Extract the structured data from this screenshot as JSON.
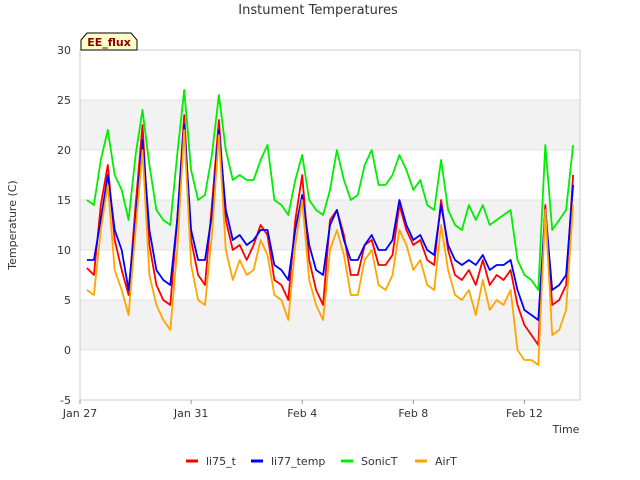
{
  "chart_data": {
    "type": "line",
    "title": "Instument Temperatures",
    "badge": "EE_flux",
    "xlabel": "Time",
    "ylabel": "Temperature (C)",
    "ylim": [
      -5,
      30
    ],
    "yticks": [
      -5,
      0,
      5,
      10,
      15,
      20,
      25,
      30
    ],
    "xlim": [
      "2023-01-27",
      "2023-02-14"
    ],
    "xticks": [
      {
        "date": "2023-01-27",
        "label": "Jan 27"
      },
      {
        "date": "2023-01-31",
        "label": "Jan 31"
      },
      {
        "date": "2023-02-04",
        "label": "Feb 4"
      },
      {
        "date": "2023-02-08",
        "label": "Feb 8"
      },
      {
        "date": "2023-02-12",
        "label": "Feb 12"
      }
    ],
    "background_bands": "alternating gray 0-5, 10-15, 20-25",
    "legend_position": "bottom",
    "series": [
      {
        "name": "li75_t",
        "color": "#ff0000",
        "x": [
          "2023-01-27T06:00",
          "2023-01-27T12:00",
          "2023-01-27T18:00",
          "2023-01-28T00:00",
          "2023-01-28T06:00",
          "2023-01-28T12:00",
          "2023-01-28T18:00",
          "2023-01-29T00:00",
          "2023-01-29T06:00",
          "2023-01-29T12:00",
          "2023-01-29T18:00",
          "2023-01-30T00:00",
          "2023-01-30T06:00",
          "2023-01-30T12:00",
          "2023-01-30T18:00",
          "2023-01-31T00:00",
          "2023-01-31T06:00",
          "2023-01-31T12:00",
          "2023-01-31T18:00",
          "2023-02-01T00:00",
          "2023-02-01T06:00",
          "2023-02-01T12:00",
          "2023-02-01T18:00",
          "2023-02-02T00:00",
          "2023-02-02T06:00",
          "2023-02-02T12:00",
          "2023-02-02T18:00",
          "2023-02-03T00:00",
          "2023-02-03T06:00",
          "2023-02-03T12:00",
          "2023-02-03T18:00",
          "2023-02-04T00:00",
          "2023-02-04T06:00",
          "2023-02-04T12:00",
          "2023-02-04T18:00",
          "2023-02-05T00:00",
          "2023-02-05T06:00",
          "2023-02-05T12:00",
          "2023-02-05T18:00",
          "2023-02-06T00:00",
          "2023-02-06T06:00",
          "2023-02-06T12:00",
          "2023-02-06T18:00",
          "2023-02-07T00:00",
          "2023-02-07T06:00",
          "2023-02-07T12:00",
          "2023-02-07T18:00",
          "2023-02-08T00:00",
          "2023-02-08T06:00",
          "2023-02-08T12:00",
          "2023-02-08T18:00",
          "2023-02-09T00:00",
          "2023-02-09T06:00",
          "2023-02-09T12:00",
          "2023-02-09T18:00",
          "2023-02-10T00:00",
          "2023-02-10T06:00",
          "2023-02-10T12:00",
          "2023-02-10T18:00",
          "2023-02-11T00:00",
          "2023-02-11T06:00",
          "2023-02-11T12:00",
          "2023-02-11T18:00",
          "2023-02-12T00:00",
          "2023-02-12T06:00",
          "2023-02-12T12:00",
          "2023-02-12T18:00",
          "2023-02-13T00:00",
          "2023-02-13T06:00",
          "2023-02-13T12:00",
          "2023-02-13T18:00"
        ],
        "values": [
          8.2,
          7.5,
          14.5,
          18.5,
          11.0,
          8.0,
          5.5,
          14.5,
          22.5,
          10.5,
          6.5,
          5.0,
          4.5,
          13.0,
          23.5,
          11.0,
          7.5,
          6.5,
          14.5,
          23.0,
          13.0,
          10.0,
          10.5,
          9.0,
          10.5,
          12.5,
          11.5,
          7.0,
          6.5,
          5.0,
          13.0,
          17.5,
          9.0,
          6.0,
          4.5,
          13.0,
          14.0,
          11.5,
          7.5,
          7.5,
          10.5,
          11.0,
          8.5,
          8.5,
          9.5,
          14.5,
          12.0,
          10.5,
          11.0,
          9.0,
          8.5,
          15.0,
          10.0,
          7.5,
          7.0,
          8.0,
          6.5,
          9.0,
          6.5,
          7.5,
          7.0,
          8.0,
          4.5,
          2.5,
          1.5,
          0.5,
          14.5,
          4.5,
          5.0,
          6.5,
          17.5
        ]
      },
      {
        "name": "li77_temp",
        "color": "#0000ff",
        "x": [
          "2023-01-27T06:00",
          "2023-01-27T12:00",
          "2023-01-27T18:00",
          "2023-01-28T00:00",
          "2023-01-28T06:00",
          "2023-01-28T12:00",
          "2023-01-28T18:00",
          "2023-01-29T00:00",
          "2023-01-29T06:00",
          "2023-01-29T12:00",
          "2023-01-29T18:00",
          "2023-01-30T00:00",
          "2023-01-30T06:00",
          "2023-01-30T12:00",
          "2023-01-30T18:00",
          "2023-01-31T00:00",
          "2023-01-31T06:00",
          "2023-01-31T12:00",
          "2023-01-31T18:00",
          "2023-02-01T00:00",
          "2023-02-01T06:00",
          "2023-02-01T12:00",
          "2023-02-01T18:00",
          "2023-02-02T00:00",
          "2023-02-02T06:00",
          "2023-02-02T12:00",
          "2023-02-02T18:00",
          "2023-02-03T00:00",
          "2023-02-03T06:00",
          "2023-02-03T12:00",
          "2023-02-03T18:00",
          "2023-02-04T00:00",
          "2023-02-04T06:00",
          "2023-02-04T12:00",
          "2023-02-04T18:00",
          "2023-02-05T00:00",
          "2023-02-05T06:00",
          "2023-02-05T12:00",
          "2023-02-05T18:00",
          "2023-02-06T00:00",
          "2023-02-06T06:00",
          "2023-02-06T12:00",
          "2023-02-06T18:00",
          "2023-02-07T00:00",
          "2023-02-07T06:00",
          "2023-02-07T12:00",
          "2023-02-07T18:00",
          "2023-02-08T00:00",
          "2023-02-08T06:00",
          "2023-02-08T12:00",
          "2023-02-08T18:00",
          "2023-02-09T00:00",
          "2023-02-09T06:00",
          "2023-02-09T12:00",
          "2023-02-09T18:00",
          "2023-02-10T00:00",
          "2023-02-10T06:00",
          "2023-02-10T12:00",
          "2023-02-10T18:00",
          "2023-02-11T00:00",
          "2023-02-11T06:00",
          "2023-02-11T12:00",
          "2023-02-11T18:00",
          "2023-02-12T00:00",
          "2023-02-12T06:00",
          "2023-02-12T12:00",
          "2023-02-12T18:00",
          "2023-02-13T00:00",
          "2023-02-13T06:00",
          "2023-02-13T12:00",
          "2023-02-13T18:00"
        ],
        "values": [
          9.0,
          9.0,
          13.0,
          17.5,
          12.0,
          10.0,
          6.0,
          13.0,
          21.0,
          12.0,
          8.0,
          7.0,
          6.5,
          13.0,
          22.5,
          12.0,
          9.0,
          9.0,
          13.5,
          22.0,
          14.0,
          11.0,
          11.5,
          10.5,
          11.0,
          12.0,
          12.0,
          8.5,
          8.0,
          7.0,
          12.0,
          15.5,
          10.5,
          8.0,
          7.5,
          12.5,
          14.0,
          11.0,
          9.0,
          9.0,
          10.5,
          11.5,
          10.0,
          10.0,
          11.0,
          15.0,
          12.5,
          11.0,
          11.5,
          10.0,
          9.5,
          14.5,
          10.5,
          9.0,
          8.5,
          9.0,
          8.5,
          9.5,
          8.0,
          8.5,
          8.5,
          9.0,
          6.0,
          4.0,
          3.5,
          3.0,
          14.0,
          6.0,
          6.5,
          7.5,
          16.5
        ]
      },
      {
        "name": "SonicT",
        "color": "#00ee00",
        "x": [
          "2023-01-27T06:00",
          "2023-01-27T12:00",
          "2023-01-27T18:00",
          "2023-01-28T00:00",
          "2023-01-28T06:00",
          "2023-01-28T12:00",
          "2023-01-28T18:00",
          "2023-01-29T00:00",
          "2023-01-29T06:00",
          "2023-01-29T12:00",
          "2023-01-29T18:00",
          "2023-01-30T00:00",
          "2023-01-30T06:00",
          "2023-01-30T12:00",
          "2023-01-30T18:00",
          "2023-01-31T00:00",
          "2023-01-31T06:00",
          "2023-01-31T12:00",
          "2023-01-31T18:00",
          "2023-02-01T00:00",
          "2023-02-01T06:00",
          "2023-02-01T12:00",
          "2023-02-01T18:00",
          "2023-02-02T00:00",
          "2023-02-02T06:00",
          "2023-02-02T12:00",
          "2023-02-02T18:00",
          "2023-02-03T00:00",
          "2023-02-03T06:00",
          "2023-02-03T12:00",
          "2023-02-03T18:00",
          "2023-02-04T00:00",
          "2023-02-04T06:00",
          "2023-02-04T12:00",
          "2023-02-04T18:00",
          "2023-02-05T00:00",
          "2023-02-05T06:00",
          "2023-02-05T12:00",
          "2023-02-05T18:00",
          "2023-02-06T00:00",
          "2023-02-06T06:00",
          "2023-02-06T12:00",
          "2023-02-06T18:00",
          "2023-02-07T00:00",
          "2023-02-07T06:00",
          "2023-02-07T12:00",
          "2023-02-07T18:00",
          "2023-02-08T00:00",
          "2023-02-08T06:00",
          "2023-02-08T12:00",
          "2023-02-08T18:00",
          "2023-02-09T00:00",
          "2023-02-09T06:00",
          "2023-02-09T12:00",
          "2023-02-09T18:00",
          "2023-02-10T00:00",
          "2023-02-10T06:00",
          "2023-02-10T12:00",
          "2023-02-10T18:00",
          "2023-02-11T00:00",
          "2023-02-11T06:00",
          "2023-02-11T12:00",
          "2023-02-11T18:00",
          "2023-02-12T00:00",
          "2023-02-12T06:00",
          "2023-02-12T12:00",
          "2023-02-12T18:00",
          "2023-02-13T00:00",
          "2023-02-13T06:00",
          "2023-02-13T12:00",
          "2023-02-13T18:00"
        ],
        "values": [
          15.0,
          14.5,
          19.0,
          22.0,
          17.5,
          16.0,
          13.0,
          19.5,
          24.0,
          18.5,
          14.0,
          13.0,
          12.5,
          19.5,
          26.0,
          18.0,
          15.0,
          15.5,
          19.5,
          25.5,
          20.0,
          17.0,
          17.5,
          17.0,
          17.0,
          19.0,
          20.5,
          15.0,
          14.5,
          13.5,
          17.0,
          19.5,
          15.0,
          14.0,
          13.5,
          16.0,
          20.0,
          17.0,
          15.0,
          15.5,
          18.5,
          20.0,
          16.5,
          16.5,
          17.5,
          19.5,
          18.0,
          16.0,
          17.0,
          14.5,
          14.0,
          19.0,
          14.0,
          12.5,
          12.0,
          14.5,
          13.0,
          14.5,
          12.5,
          13.0,
          13.5,
          14.0,
          9.0,
          7.5,
          7.0,
          6.0,
          20.5,
          12.0,
          13.0,
          14.0,
          20.5
        ]
      },
      {
        "name": "AirT",
        "color": "#ffa500",
        "x": [
          "2023-01-27T06:00",
          "2023-01-27T12:00",
          "2023-01-27T18:00",
          "2023-01-28T00:00",
          "2023-01-28T06:00",
          "2023-01-28T12:00",
          "2023-01-28T18:00",
          "2023-01-29T00:00",
          "2023-01-29T06:00",
          "2023-01-29T12:00",
          "2023-01-29T18:00",
          "2023-01-30T00:00",
          "2023-01-30T06:00",
          "2023-01-30T12:00",
          "2023-01-30T18:00",
          "2023-01-31T00:00",
          "2023-01-31T06:00",
          "2023-01-31T12:00",
          "2023-01-31T18:00",
          "2023-02-01T00:00",
          "2023-02-01T06:00",
          "2023-02-01T12:00",
          "2023-02-01T18:00",
          "2023-02-02T00:00",
          "2023-02-02T06:00",
          "2023-02-02T12:00",
          "2023-02-02T18:00",
          "2023-02-03T00:00",
          "2023-02-03T06:00",
          "2023-02-03T12:00",
          "2023-02-03T18:00",
          "2023-02-04T00:00",
          "2023-02-04T06:00",
          "2023-02-04T12:00",
          "2023-02-04T18:00",
          "2023-02-05T00:00",
          "2023-02-05T06:00",
          "2023-02-05T12:00",
          "2023-02-05T18:00",
          "2023-02-06T00:00",
          "2023-02-06T06:00",
          "2023-02-06T12:00",
          "2023-02-06T18:00",
          "2023-02-07T00:00",
          "2023-02-07T06:00",
          "2023-02-07T12:00",
          "2023-02-07T18:00",
          "2023-02-08T00:00",
          "2023-02-08T06:00",
          "2023-02-08T12:00",
          "2023-02-08T18:00",
          "2023-02-09T00:00",
          "2023-02-09T06:00",
          "2023-02-09T12:00",
          "2023-02-09T18:00",
          "2023-02-10T00:00",
          "2023-02-10T06:00",
          "2023-02-10T12:00",
          "2023-02-10T18:00",
          "2023-02-11T00:00",
          "2023-02-11T06:00",
          "2023-02-11T12:00",
          "2023-02-11T18:00",
          "2023-02-12T00:00",
          "2023-02-12T06:00",
          "2023-02-12T12:00",
          "2023-02-12T18:00",
          "2023-02-13T00:00",
          "2023-02-13T06:00",
          "2023-02-13T12:00",
          "2023-02-13T18:00"
        ],
        "values": [
          6.0,
          5.5,
          12.0,
          16.5,
          8.0,
          6.0,
          3.5,
          12.0,
          20.0,
          7.5,
          4.5,
          3.0,
          2.0,
          10.0,
          22.0,
          8.5,
          5.0,
          4.5,
          11.5,
          21.5,
          10.0,
          7.0,
          9.0,
          7.5,
          8.0,
          11.0,
          9.5,
          5.5,
          5.0,
          3.0,
          10.5,
          15.0,
          7.0,
          4.5,
          3.0,
          10.0,
          12.0,
          9.5,
          5.5,
          5.5,
          9.0,
          10.0,
          6.5,
          6.0,
          7.5,
          12.0,
          10.5,
          8.0,
          9.0,
          6.5,
          6.0,
          12.5,
          8.0,
          5.5,
          5.0,
          6.0,
          3.5,
          7.0,
          4.0,
          5.0,
          4.5,
          6.0,
          0.0,
          -1.0,
          -1.0,
          -1.5,
          14.0,
          1.5,
          2.0,
          4.0,
          14.5
        ]
      }
    ]
  }
}
